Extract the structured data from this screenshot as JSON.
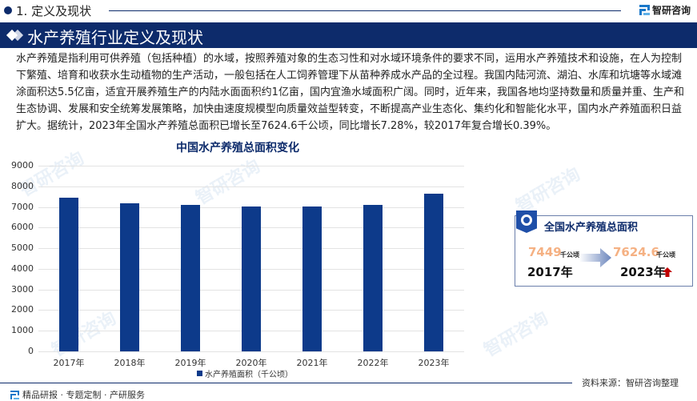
{
  "header": {
    "section_label": "1. 定义及现状",
    "brand_name": "智研咨询",
    "banner_title": "水产养殖行业定义及现状"
  },
  "body": {
    "paragraph": "水产养殖是指利用可供养殖（包括种植）的水域，按照养殖对象的生态习性和对水域环境条件的要求不同，运用水产养殖技术和设施，在人为控制下繁殖、培育和收获水生动植物的生产活动，一般包括在人工饲养管理下从苗种养成水产品的全过程。我国内陆河流、湖泊、水库和坑塘等水域滩涂面积达5.5亿亩，适宜开展养殖生产的内陆水面面积约1亿亩，国内宜渔水域面积广阔。同时，近年来，我国各地均坚持数量和质量并重、生产和生态协调、发展和安全统筹发展策略，加快由速度规模型向质量效益型转变，不断提高产业生态化、集约化和智能化水平，国内水产养殖面积日益扩大。据统计，2023年全国水产养殖总面积已增长至7624.6千公顷，同比增长7.28%，较2017年复合增长0.39%。"
  },
  "chart_data": {
    "type": "bar",
    "title": "中国水产养殖总面积变化",
    "categories": [
      "2017年",
      "2018年",
      "2019年",
      "2020年",
      "2021年",
      "2022年",
      "2023年"
    ],
    "series": [
      {
        "name": "水产养殖面积（千公顷）",
        "values": [
          7449,
          7190,
          7109,
          7036,
          7010,
          7107,
          7624.6
        ],
        "color": "#0d3a8a"
      }
    ],
    "xlabel": "",
    "ylabel": "",
    "ylim": [
      0,
      9000
    ],
    "yticks": [
      "0",
      "1000",
      "2000",
      "3000",
      "4000",
      "5000",
      "6000",
      "7000",
      "8000",
      "9000"
    ],
    "grid": true,
    "legend_position": "bottom-left"
  },
  "summary_card": {
    "title": "全国水产养殖总面积",
    "start_value": "7449",
    "start_unit": "千公顷",
    "start_year": "2017年",
    "end_value": "7624.6",
    "end_unit": "千公顷",
    "end_year": "2023年",
    "trend": "up",
    "value_color": "#f5b183",
    "trend_color": "#c00000"
  },
  "footer": {
    "tagline": "精品研报 · 专题定制 · 产研服务",
    "source": "资料来源：智研咨询整理"
  },
  "colors": {
    "brand_navy": "#0d2b6b",
    "bar_blue": "#0d3a8a",
    "logo_blue": "#1a78c9"
  }
}
